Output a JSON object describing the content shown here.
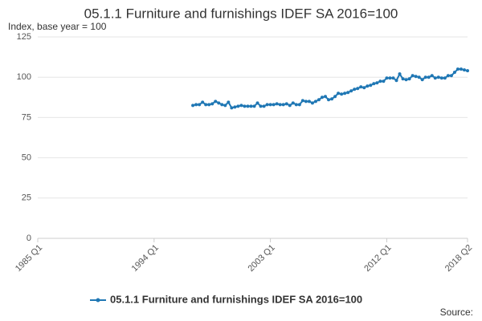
{
  "chart_data": {
    "type": "line",
    "title": "05.1.1 Furniture and furnishings IDEF SA 2016=100",
    "subtitle": "Index, base year = 100",
    "source": "Source:",
    "categories": [
      "1985 Q1",
      null,
      null,
      null,
      null,
      null,
      null,
      null,
      null,
      null,
      null,
      null,
      null,
      null,
      null,
      null,
      null,
      null,
      null,
      null,
      null,
      null,
      null,
      null,
      null,
      null,
      null,
      null,
      null,
      null,
      null,
      null,
      null,
      null,
      null,
      null,
      "1994 Q1",
      null,
      null,
      null,
      null,
      null,
      null,
      null,
      null,
      null,
      null,
      null,
      null,
      null,
      null,
      null,
      null,
      null,
      null,
      null,
      null,
      null,
      null,
      null,
      null,
      null,
      null,
      null,
      null,
      null,
      null,
      null,
      null,
      null,
      null,
      null,
      "2003 Q1",
      null,
      null,
      null,
      null,
      null,
      null,
      null,
      null,
      null,
      null,
      null,
      null,
      null,
      null,
      null,
      null,
      null,
      null,
      null,
      null,
      null,
      null,
      null,
      null,
      null,
      null,
      null,
      null,
      null,
      null,
      null,
      null,
      null,
      null,
      null,
      "2012 Q1",
      null,
      null,
      null,
      null,
      null,
      null,
      null,
      null,
      null,
      null,
      null,
      null,
      null,
      null,
      null,
      null,
      null,
      null,
      null,
      null,
      null,
      null,
      null,
      null,
      "2018 Q2"
    ],
    "series": [
      {
        "name": "05.1.1 Furniture and furnishings IDEF SA 2016=100",
        "color": "#1f77b4",
        "values": [
          null,
          null,
          null,
          null,
          null,
          null,
          null,
          null,
          null,
          null,
          null,
          null,
          null,
          null,
          null,
          null,
          null,
          null,
          null,
          null,
          null,
          null,
          null,
          null,
          null,
          null,
          null,
          null,
          null,
          null,
          null,
          null,
          null,
          null,
          null,
          null,
          null,
          null,
          null,
          null,
          null,
          null,
          null,
          null,
          null,
          null,
          null,
          null,
          82.5,
          83,
          83,
          84.5,
          83,
          83,
          83.5,
          85,
          84,
          83,
          82.5,
          84.5,
          81,
          81.5,
          82,
          82.5,
          82,
          82,
          82,
          82,
          84,
          82,
          82,
          83,
          83,
          83,
          83.5,
          83,
          83,
          83.5,
          82.5,
          84,
          83,
          83,
          85.5,
          85,
          85,
          84,
          85,
          86,
          87.5,
          88,
          86,
          86.5,
          88,
          90,
          89.5,
          90,
          90.5,
          91.5,
          92.5,
          93,
          94,
          93.5,
          94.5,
          95,
          96,
          96.5,
          97.5,
          97.5,
          99.5,
          99.5,
          99.5,
          98,
          102,
          99,
          98.5,
          99,
          101,
          100.5,
          100,
          98.5,
          100,
          100,
          101,
          99.5,
          100,
          99.5,
          99.5,
          101,
          101,
          103,
          105,
          105,
          104.5,
          104
        ]
      }
    ],
    "ylim": [
      0,
      125
    ],
    "yticks": [
      0,
      25,
      50,
      75,
      100,
      125
    ],
    "grid": true,
    "legend": "bottom"
  }
}
